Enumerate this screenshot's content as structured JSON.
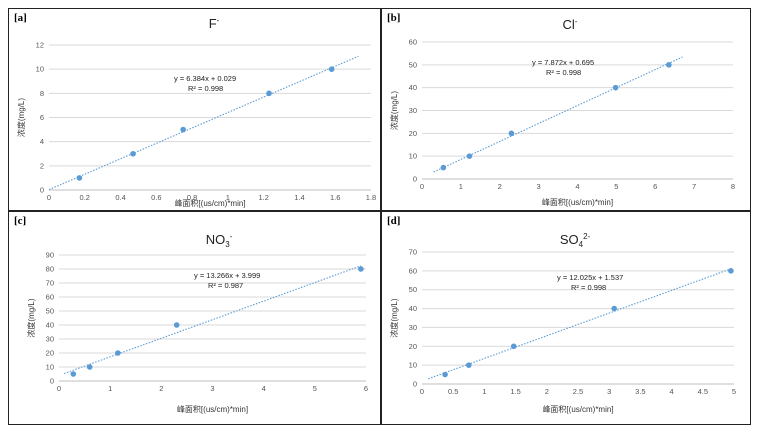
{
  "chart_data": [
    {
      "panel": "[a]",
      "type": "scatter",
      "title": "F-",
      "title_main": "F",
      "title_sup": "-",
      "xlabel": "峰面积[(us/cm)*min]",
      "ylabel": "浓度(mg/L)",
      "xlim": [
        0,
        1.8
      ],
      "ylim": [
        0,
        12
      ],
      "xticks": [
        "0",
        "0.2",
        "0.4",
        "0.6",
        "0.8",
        "1",
        "1.2",
        "1.4",
        "1.6",
        "1.8"
      ],
      "yticks": [
        "0",
        "2",
        "4",
        "6",
        "8",
        "10",
        "12"
      ],
      "points": [
        {
          "x": 0.17,
          "y": 1
        },
        {
          "x": 0.47,
          "y": 3
        },
        {
          "x": 0.75,
          "y": 5
        },
        {
          "x": 1.23,
          "y": 8
        },
        {
          "x": 1.58,
          "y": 10
        }
      ],
      "trendline": {
        "slope": 6.384,
        "intercept": 0.029,
        "x_range": [
          0,
          1.73
        ]
      },
      "equation": "y = 6.384x + 0.029",
      "r2": "R² = 0.998",
      "grid": "horizontal",
      "color": "#5b9bd5"
    },
    {
      "panel": "[b]",
      "type": "scatter",
      "title": "Cl-",
      "title_main": "Cl",
      "title_sup": "-",
      "xlabel": "峰面积[(us/cm)*min]",
      "ylabel": "浓度(mg/L)",
      "xlim": [
        0,
        8
      ],
      "ylim": [
        0,
        60
      ],
      "xticks": [
        "0",
        "1",
        "2",
        "3",
        "4",
        "5",
        "6",
        "7",
        "8"
      ],
      "yticks": [
        "0",
        "10",
        "20",
        "30",
        "40",
        "50",
        "60"
      ],
      "points": [
        {
          "x": 0.55,
          "y": 5
        },
        {
          "x": 1.22,
          "y": 10
        },
        {
          "x": 2.3,
          "y": 20
        },
        {
          "x": 4.98,
          "y": 40
        },
        {
          "x": 6.35,
          "y": 50
        }
      ],
      "trendline": {
        "slope": 7.872,
        "intercept": 0.695,
        "x_range": [
          0.3,
          6.7
        ]
      },
      "equation": "y = 7.872x + 0.695",
      "r2": "R² = 0.998",
      "grid": "horizontal",
      "color": "#5b9bd5"
    },
    {
      "panel": "[c]",
      "type": "scatter",
      "title": "NO3-",
      "title_main": "NO",
      "title_sub": "3",
      "title_sup": "-",
      "xlabel": "峰面积[(us/cm)*min]",
      "ylabel": "浓度(mg/L)",
      "xlim": [
        0,
        6
      ],
      "ylim": [
        0,
        90
      ],
      "xticks": [
        "0",
        "1",
        "2",
        "3",
        "4",
        "5",
        "6"
      ],
      "yticks": [
        "0",
        "10",
        "20",
        "30",
        "40",
        "50",
        "60",
        "70",
        "80",
        "90"
      ],
      "points": [
        {
          "x": 0.28,
          "y": 5
        },
        {
          "x": 0.6,
          "y": 10
        },
        {
          "x": 1.15,
          "y": 20
        },
        {
          "x": 2.3,
          "y": 40
        },
        {
          "x": 5.9,
          "y": 80
        }
      ],
      "trendline": {
        "slope": 13.266,
        "intercept": 3.999,
        "x_range": [
          0.1,
          5.9
        ]
      },
      "equation": "y = 13.266x + 3.999",
      "r2": "R² = 0.987",
      "grid": "horizontal",
      "color": "#5b9bd5"
    },
    {
      "panel": "[d]",
      "type": "scatter",
      "title": "SO42-",
      "title_main": "SO",
      "title_sub": "4",
      "title_sup": "2-",
      "xlabel": "峰面积[(us/cm)*min]",
      "ylabel": "浓度(mg/L)",
      "xlim": [
        0,
        5
      ],
      "ylim": [
        0,
        70
      ],
      "xticks": [
        "0",
        "0.5",
        "1",
        "1.5",
        "2",
        "2.5",
        "3",
        "3.5",
        "4",
        "4.5",
        "5"
      ],
      "yticks": [
        "0",
        "10",
        "20",
        "30",
        "40",
        "50",
        "60",
        "70"
      ],
      "points": [
        {
          "x": 0.37,
          "y": 5
        },
        {
          "x": 0.75,
          "y": 10
        },
        {
          "x": 1.47,
          "y": 20
        },
        {
          "x": 3.08,
          "y": 40
        },
        {
          "x": 4.95,
          "y": 60
        }
      ],
      "trendline": {
        "slope": 12.025,
        "intercept": 1.537,
        "x_range": [
          0.1,
          4.95
        ]
      },
      "equation": "y = 12.025x + 1.537",
      "r2": "R² = 0.998",
      "grid": "horizontal",
      "color": "#5b9bd5"
    }
  ]
}
